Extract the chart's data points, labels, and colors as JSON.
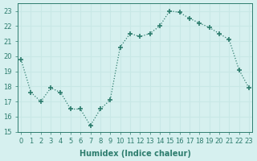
{
  "x": [
    0,
    1,
    2,
    3,
    4,
    5,
    6,
    7,
    8,
    9,
    10,
    11,
    12,
    13,
    14,
    15,
    16,
    17,
    18,
    19,
    20,
    21,
    22,
    23
  ],
  "y": [
    19.8,
    17.6,
    17.0,
    17.9,
    17.6,
    16.5,
    16.5,
    15.4,
    16.5,
    17.1,
    20.6,
    21.5,
    21.3,
    21.5,
    22.0,
    23.0,
    22.9,
    22.5,
    22.2,
    21.9,
    21.5,
    21.1,
    19.1,
    17.9
  ],
  "line_color": "#2e7d6e",
  "marker": "+",
  "marker_size": 4,
  "bg_color": "#d6f0ef",
  "grid_color": "#c8e8e6",
  "xlabel": "Humidex (Indice chaleur)",
  "ylabel": "",
  "ylim": [
    15,
    23.5
  ],
  "yticks": [
    15,
    16,
    17,
    18,
    19,
    20,
    21,
    22,
    23
  ],
  "xticks": [
    0,
    1,
    2,
    3,
    4,
    5,
    6,
    7,
    8,
    9,
    10,
    11,
    12,
    13,
    14,
    15,
    16,
    17,
    18,
    19,
    20,
    21,
    22,
    23
  ],
  "tick_fontsize": 6,
  "label_fontsize": 7,
  "xlim_left": -0.3,
  "xlim_right": 23.3
}
